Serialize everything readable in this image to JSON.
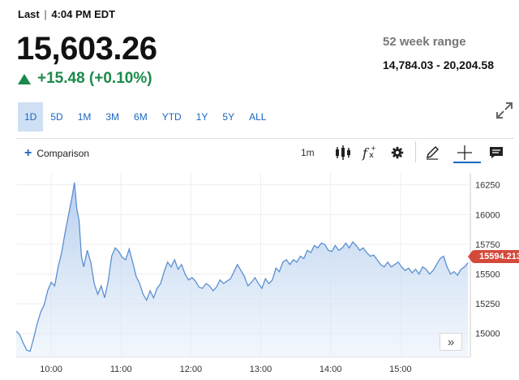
{
  "header": {
    "last_label": "Last",
    "separator": "|",
    "time": "4:04 PM EDT",
    "price": "15,603.26",
    "change": "+15.48 (+0.10%)",
    "change_color": "#1a8a4a",
    "range_label": "52 week range",
    "range_value": "14,784.03 - 20,204.58"
  },
  "tabs": [
    {
      "label": "1D",
      "active": true
    },
    {
      "label": "5D"
    },
    {
      "label": "1M"
    },
    {
      "label": "3M"
    },
    {
      "label": "6M"
    },
    {
      "label": "YTD"
    },
    {
      "label": "1Y"
    },
    {
      "label": "5Y"
    },
    {
      "label": "ALL"
    }
  ],
  "toolbar": {
    "comparison_label": "Comparison",
    "interval": "1m",
    "icons": [
      "candlestick-icon",
      "fx-indicator-icon",
      "gear-icon",
      "pencil-icon",
      "crosshair-icon",
      "comment-icon"
    ],
    "accent_color": "#1a66c4"
  },
  "chart_data": {
    "type": "area",
    "x_ticks": [
      "10:00",
      "11:00",
      "12:00",
      "13:00",
      "14:00",
      "15:00"
    ],
    "y_ticks": [
      "16250",
      "16000",
      "15750",
      "15500",
      "15250",
      "15000"
    ],
    "ylim": [
      14800,
      16350
    ],
    "xlim": [
      "09:30",
      "16:00"
    ],
    "current_value_label": "15594.213",
    "current_value": 15594.213,
    "grid": true,
    "line_color": "#5b8fd1",
    "series": [
      {
        "values": [
          [
            "09:30",
            15020
          ],
          [
            "09:33",
            14990
          ],
          [
            "09:36",
            14920
          ],
          [
            "09:39",
            14860
          ],
          [
            "09:42",
            14850
          ],
          [
            "09:45",
            14960
          ],
          [
            "09:48",
            15080
          ],
          [
            "09:51",
            15180
          ],
          [
            "09:54",
            15240
          ],
          [
            "09:57",
            15360
          ],
          [
            "10:00",
            15430
          ],
          [
            "10:03",
            15400
          ],
          [
            "10:06",
            15560
          ],
          [
            "10:09",
            15680
          ],
          [
            "10:12",
            15850
          ],
          [
            "10:15",
            16000
          ],
          [
            "10:18",
            16150
          ],
          [
            "10:20",
            16270
          ],
          [
            "10:22",
            16050
          ],
          [
            "10:24",
            15950
          ],
          [
            "10:26",
            15650
          ],
          [
            "10:28",
            15560
          ],
          [
            "10:31",
            15700
          ],
          [
            "10:34",
            15600
          ],
          [
            "10:37",
            15420
          ],
          [
            "10:40",
            15330
          ],
          [
            "10:43",
            15400
          ],
          [
            "10:46",
            15300
          ],
          [
            "10:49",
            15440
          ],
          [
            "10:52",
            15650
          ],
          [
            "10:55",
            15720
          ],
          [
            "10:58",
            15690
          ],
          [
            "11:01",
            15640
          ],
          [
            "11:04",
            15620
          ],
          [
            "11:07",
            15710
          ],
          [
            "11:10",
            15600
          ],
          [
            "11:13",
            15480
          ],
          [
            "11:16",
            15420
          ],
          [
            "11:19",
            15330
          ],
          [
            "11:22",
            15280
          ],
          [
            "11:25",
            15360
          ],
          [
            "11:28",
            15300
          ],
          [
            "11:31",
            15380
          ],
          [
            "11:34",
            15420
          ],
          [
            "11:37",
            15520
          ],
          [
            "11:40",
            15600
          ],
          [
            "11:43",
            15560
          ],
          [
            "11:46",
            15620
          ],
          [
            "11:49",
            15540
          ],
          [
            "11:52",
            15580
          ],
          [
            "11:55",
            15500
          ],
          [
            "11:58",
            15450
          ],
          [
            "12:01",
            15470
          ],
          [
            "12:04",
            15440
          ],
          [
            "12:07",
            15390
          ],
          [
            "12:10",
            15380
          ],
          [
            "12:13",
            15420
          ],
          [
            "12:16",
            15400
          ],
          [
            "12:19",
            15360
          ],
          [
            "12:22",
            15390
          ],
          [
            "12:25",
            15450
          ],
          [
            "12:28",
            15420
          ],
          [
            "12:31",
            15440
          ],
          [
            "12:34",
            15460
          ],
          [
            "12:37",
            15520
          ],
          [
            "12:40",
            15580
          ],
          [
            "12:43",
            15530
          ],
          [
            "12:46",
            15480
          ],
          [
            "12:49",
            15400
          ],
          [
            "12:52",
            15430
          ],
          [
            "12:55",
            15470
          ],
          [
            "12:58",
            15420
          ],
          [
            "13:01",
            15380
          ],
          [
            "13:04",
            15460
          ],
          [
            "13:07",
            15420
          ],
          [
            "13:10",
            15450
          ],
          [
            "13:13",
            15550
          ],
          [
            "13:16",
            15520
          ],
          [
            "13:19",
            15600
          ],
          [
            "13:22",
            15620
          ],
          [
            "13:25",
            15580
          ],
          [
            "13:28",
            15620
          ],
          [
            "13:31",
            15600
          ],
          [
            "13:34",
            15650
          ],
          [
            "13:37",
            15630
          ],
          [
            "13:40",
            15700
          ],
          [
            "13:43",
            15680
          ],
          [
            "13:46",
            15740
          ],
          [
            "13:49",
            15720
          ],
          [
            "13:52",
            15760
          ],
          [
            "13:55",
            15750
          ],
          [
            "13:58",
            15700
          ],
          [
            "14:01",
            15690
          ],
          [
            "14:04",
            15740
          ],
          [
            "14:07",
            15700
          ],
          [
            "14:10",
            15720
          ],
          [
            "14:13",
            15760
          ],
          [
            "14:16",
            15720
          ],
          [
            "14:19",
            15770
          ],
          [
            "14:22",
            15740
          ],
          [
            "14:25",
            15700
          ],
          [
            "14:28",
            15720
          ],
          [
            "14:31",
            15680
          ],
          [
            "14:34",
            15650
          ],
          [
            "14:37",
            15660
          ],
          [
            "14:40",
            15620
          ],
          [
            "14:43",
            15580
          ],
          [
            "14:46",
            15560
          ],
          [
            "14:49",
            15600
          ],
          [
            "14:52",
            15560
          ],
          [
            "14:55",
            15580
          ],
          [
            "14:58",
            15600
          ],
          [
            "15:01",
            15560
          ],
          [
            "15:04",
            15530
          ],
          [
            "15:07",
            15550
          ],
          [
            "15:10",
            15510
          ],
          [
            "15:13",
            15540
          ],
          [
            "15:16",
            15500
          ],
          [
            "15:19",
            15560
          ],
          [
            "15:22",
            15540
          ],
          [
            "15:25",
            15500
          ],
          [
            "15:28",
            15530
          ],
          [
            "15:31",
            15580
          ],
          [
            "15:34",
            15630
          ],
          [
            "15:37",
            15650
          ],
          [
            "15:40",
            15560
          ],
          [
            "15:43",
            15500
          ],
          [
            "15:46",
            15520
          ],
          [
            "15:49",
            15490
          ],
          [
            "15:52",
            15540
          ],
          [
            "15:55",
            15560
          ],
          [
            "15:58",
            15594
          ]
        ]
      }
    ]
  },
  "scroll_button_label": "»"
}
